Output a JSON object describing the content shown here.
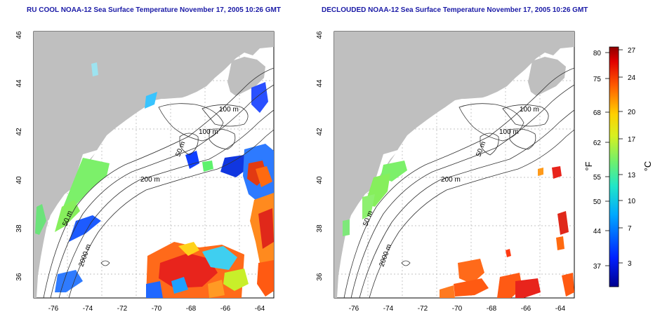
{
  "panel_left": {
    "title": "RU COOL NOAA-12 Sea Surface Temperature November 17, 2005 10:26 GMT"
  },
  "panel_right": {
    "title": "DECLOUDED NOAA-12 Sea Surface Temperature November 17, 2005 10:26 GMT"
  },
  "axes": {
    "x_ticks": [
      "-76",
      "-74",
      "-72",
      "-70",
      "-68",
      "-66",
      "-64"
    ],
    "y_ticks": [
      "36",
      "38",
      "40",
      "42",
      "44",
      "46"
    ]
  },
  "contour_labels": {
    "m100_a": "100 m",
    "m100_b": "100 m",
    "m50_a": "50 m",
    "m200": "200 m",
    "m50_b": "50 m",
    "m2000": "2000 m"
  },
  "colorbar": {
    "unit_f": "°F",
    "unit_c": "°C",
    "f_ticks": [
      "80",
      "75",
      "68",
      "62",
      "55",
      "50",
      "44",
      "37"
    ],
    "c_ticks": [
      "27",
      "24",
      "20",
      "17",
      "13",
      "10",
      "7",
      "3"
    ]
  },
  "colors": {
    "land": "#bfbfbf",
    "title": "#1a1aa6",
    "grid": "#b0b0b0"
  }
}
